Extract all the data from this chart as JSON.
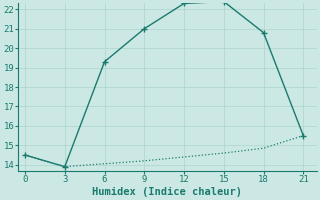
{
  "line1_x": [
    0,
    3,
    6,
    9,
    12,
    15,
    18,
    21
  ],
  "line1_y": [
    14.5,
    13.9,
    19.3,
    21.0,
    22.3,
    22.4,
    20.8,
    15.5
  ],
  "line2_x": [
    0,
    3,
    6,
    9,
    12,
    15,
    18,
    21
  ],
  "line2_y": [
    14.5,
    13.9,
    14.05,
    14.2,
    14.4,
    14.6,
    14.85,
    15.5
  ],
  "line_color": "#1a7a6e",
  "bg_color": "#cce8e4",
  "grid_color": "#b0d8d0",
  "xlabel": "Humidex (Indice chaleur)",
  "xlim": [
    -0.5,
    22
  ],
  "ylim": [
    13.7,
    22.3
  ],
  "xticks": [
    0,
    3,
    6,
    9,
    12,
    15,
    18,
    21
  ],
  "yticks": [
    14,
    15,
    16,
    17,
    18,
    19,
    20,
    21,
    22
  ],
  "xlabel_fontsize": 7.5,
  "tick_fontsize": 6.5
}
